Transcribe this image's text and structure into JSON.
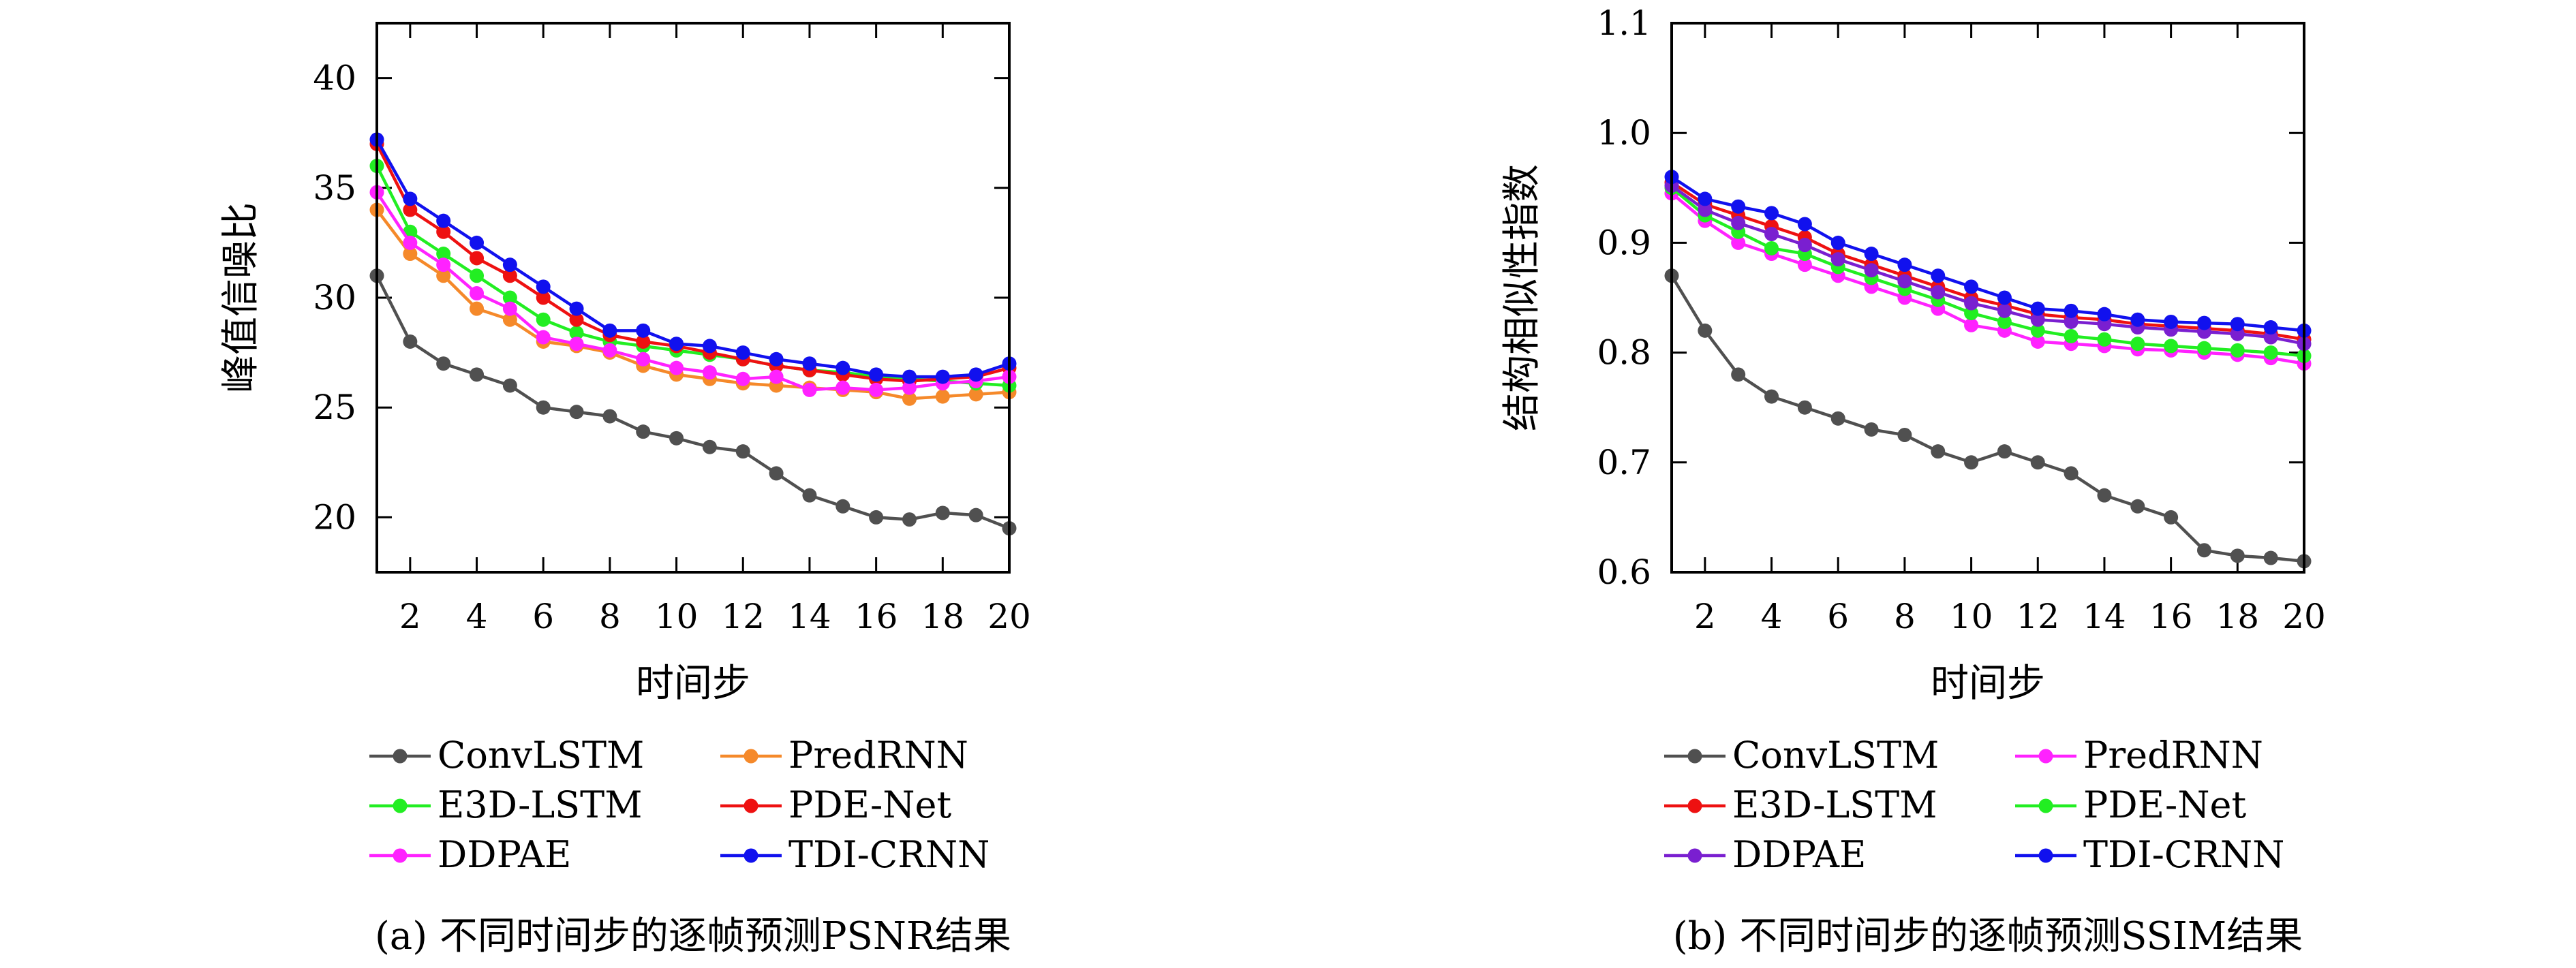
{
  "chart_data": [
    {
      "type": "line",
      "caption": "(a) 不同时间步的逐帧预测PSNR结果",
      "xlabel": "时间步",
      "ylabel": "峰值信噪比",
      "xlim": [
        1,
        20
      ],
      "ylim": [
        17.5,
        42.5
      ],
      "xticks": [
        2,
        4,
        6,
        8,
        10,
        12,
        14,
        16,
        18,
        20
      ],
      "yticks": [
        20,
        25,
        30,
        35,
        40
      ],
      "legend_position": "bottom",
      "x": [
        1,
        2,
        3,
        4,
        5,
        6,
        7,
        8,
        9,
        10,
        11,
        12,
        13,
        14,
        15,
        16,
        17,
        18,
        19,
        20
      ],
      "series": [
        {
          "name": "ConvLSTM",
          "color": "#505050",
          "values": [
            31.0,
            28.0,
            27.0,
            26.5,
            26.0,
            25.0,
            24.8,
            24.6,
            23.9,
            23.6,
            23.2,
            23.0,
            22.0,
            21.0,
            20.5,
            20.0,
            19.9,
            20.2,
            20.1,
            19.5
          ]
        },
        {
          "name": "PredRNN",
          "color": "#f5892a",
          "values": [
            34.0,
            32.0,
            31.0,
            29.5,
            29.0,
            28.0,
            27.8,
            27.5,
            26.9,
            26.5,
            26.3,
            26.1,
            26.0,
            25.9,
            25.8,
            25.7,
            25.4,
            25.5,
            25.6,
            25.7
          ]
        },
        {
          "name": "E3D-LSTM",
          "color": "#22ee22",
          "values": [
            36.0,
            33.0,
            32.0,
            31.0,
            30.0,
            29.0,
            28.4,
            28.0,
            27.8,
            27.6,
            27.4,
            27.2,
            26.9,
            26.7,
            26.6,
            26.4,
            26.3,
            26.2,
            26.1,
            26.0
          ]
        },
        {
          "name": "PDE-Net",
          "color": "#ee1111",
          "values": [
            37.0,
            34.0,
            33.0,
            31.8,
            31.0,
            30.0,
            29.0,
            28.3,
            28.0,
            27.8,
            27.5,
            27.2,
            26.9,
            26.7,
            26.5,
            26.3,
            26.2,
            26.3,
            26.4,
            26.8
          ]
        },
        {
          "name": "DDPAE",
          "color": "#ff22ff",
          "values": [
            34.8,
            32.5,
            31.5,
            30.2,
            29.5,
            28.2,
            27.9,
            27.6,
            27.2,
            26.8,
            26.6,
            26.3,
            26.4,
            25.8,
            25.9,
            25.8,
            25.9,
            26.1,
            26.2,
            26.4
          ]
        },
        {
          "name": "TDI-CRNN",
          "color": "#1111ee",
          "values": [
            37.2,
            34.5,
            33.5,
            32.5,
            31.5,
            30.5,
            29.5,
            28.5,
            28.5,
            27.9,
            27.8,
            27.5,
            27.2,
            27.0,
            26.8,
            26.5,
            26.4,
            26.4,
            26.5,
            27.0
          ]
        }
      ]
    },
    {
      "type": "line",
      "caption": "(b) 不同时间步的逐帧预测SSIM结果",
      "xlabel": "时间步",
      "ylabel": "结构相似性指数",
      "xlim": [
        1,
        20
      ],
      "ylim": [
        0.6,
        1.1
      ],
      "xticks": [
        2,
        4,
        6,
        8,
        10,
        12,
        14,
        16,
        18,
        20
      ],
      "yticks": [
        0.6,
        0.7,
        0.8,
        0.9,
        1.0,
        1.1
      ],
      "ytick_labels": [
        "0.6",
        "0.7",
        "0.8",
        "0.9",
        "1.0",
        "1.1"
      ],
      "legend_position": "bottom",
      "x": [
        1,
        2,
        3,
        4,
        5,
        6,
        7,
        8,
        9,
        10,
        11,
        12,
        13,
        14,
        15,
        16,
        17,
        18,
        19,
        20
      ],
      "series": [
        {
          "name": "ConvLSTM",
          "color": "#505050",
          "values": [
            0.87,
            0.82,
            0.78,
            0.76,
            0.75,
            0.74,
            0.73,
            0.725,
            0.71,
            0.7,
            0.71,
            0.7,
            0.69,
            0.67,
            0.66,
            0.65,
            0.62,
            0.615,
            0.613,
            0.61
          ]
        },
        {
          "name": "PredRNN",
          "color": "#ff22ff",
          "values": [
            0.945,
            0.92,
            0.9,
            0.89,
            0.88,
            0.87,
            0.86,
            0.85,
            0.84,
            0.825,
            0.82,
            0.81,
            0.808,
            0.806,
            0.803,
            0.802,
            0.8,
            0.798,
            0.795,
            0.79
          ]
        },
        {
          "name": "E3D-LSTM",
          "color": "#ee1111",
          "values": [
            0.955,
            0.935,
            0.925,
            0.915,
            0.905,
            0.89,
            0.88,
            0.87,
            0.86,
            0.85,
            0.843,
            0.835,
            0.832,
            0.83,
            0.826,
            0.824,
            0.822,
            0.82,
            0.817,
            0.812
          ]
        },
        {
          "name": "PDE-Net",
          "color": "#22ee22",
          "values": [
            0.95,
            0.925,
            0.91,
            0.895,
            0.89,
            0.878,
            0.868,
            0.858,
            0.848,
            0.836,
            0.828,
            0.82,
            0.815,
            0.812,
            0.808,
            0.806,
            0.804,
            0.802,
            0.8,
            0.797
          ]
        },
        {
          "name": "DDPAE",
          "color": "#7a1fd0",
          "values": [
            0.952,
            0.93,
            0.918,
            0.908,
            0.898,
            0.885,
            0.875,
            0.865,
            0.855,
            0.845,
            0.838,
            0.83,
            0.828,
            0.826,
            0.823,
            0.821,
            0.819,
            0.817,
            0.814,
            0.808
          ]
        },
        {
          "name": "TDI-CRNN",
          "color": "#1111ee",
          "values": [
            0.96,
            0.94,
            0.933,
            0.927,
            0.917,
            0.9,
            0.89,
            0.88,
            0.87,
            0.86,
            0.85,
            0.84,
            0.838,
            0.835,
            0.83,
            0.828,
            0.827,
            0.826,
            0.823,
            0.82
          ]
        }
      ]
    }
  ]
}
